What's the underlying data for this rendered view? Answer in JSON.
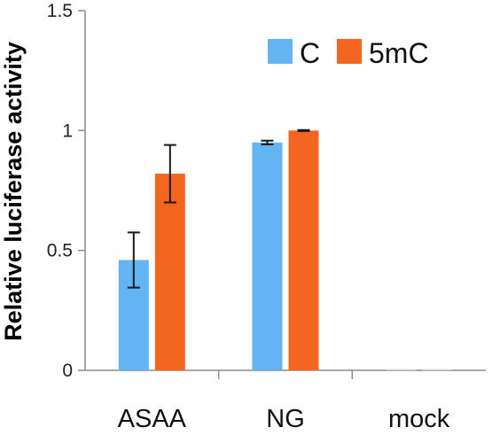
{
  "chart_data": {
    "type": "bar",
    "categories": [
      "ASAA",
      "NG",
      "mock"
    ],
    "series": [
      {
        "name": "C",
        "color": "#63b4f2",
        "values": [
          0.46,
          0.95,
          0.0
        ],
        "errors": [
          0.115,
          0.008,
          0.0
        ]
      },
      {
        "name": "5mC",
        "color": "#f4661f",
        "values": [
          0.82,
          1.0,
          0.0
        ],
        "errors": [
          0.12,
          0.002,
          0.0
        ]
      }
    ],
    "ylabel": "Relative luciferase activity",
    "ylim": [
      0,
      1.5
    ],
    "yticks": [
      0,
      0.5,
      1,
      1.5
    ],
    "ytick_labels": [
      "0",
      "0.5",
      "1",
      "1.5"
    ],
    "legend_position": "top-right",
    "grid": false,
    "error_bars": true
  }
}
